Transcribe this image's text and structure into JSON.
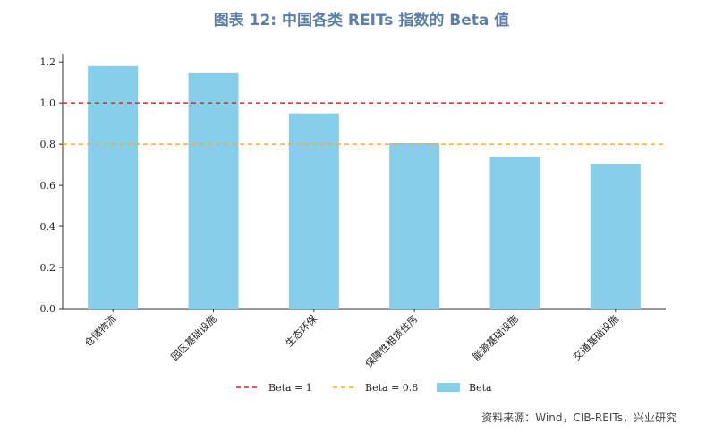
{
  "title": "图表 12: 中国各类 REITs 指数的 Beta 值",
  "source": "资料来源：Wind，CIB-REITs，兴业研究",
  "chart_data": {
    "type": "bar",
    "title": "图表 12: 中国各类 REITs 指数的 Beta 值",
    "categories": [
      "仓储物流",
      "园区基础设施",
      "生态环保",
      "保障性租赁住房",
      "能源基础设施",
      "交通基础设施"
    ],
    "series": [
      {
        "name": "Beta",
        "values": [
          1.18,
          1.145,
          0.95,
          0.805,
          0.737,
          0.705
        ],
        "color": "#87ceeb"
      }
    ],
    "reference_lines": [
      {
        "name": "Beta = 1",
        "value": 1.0,
        "color": "#d62728",
        "style": "dashed"
      },
      {
        "name": "Beta = 0.8",
        "value": 0.8,
        "color": "#f0b323",
        "style": "dashed"
      }
    ],
    "yticks": [
      "0.0",
      "0.2",
      "0.4",
      "0.6",
      "0.8",
      "1.0",
      "1.2"
    ],
    "ylim": [
      0,
      1.24
    ],
    "xlabel": "",
    "ylabel": "",
    "grid": false,
    "legend_position": "bottom-center"
  }
}
